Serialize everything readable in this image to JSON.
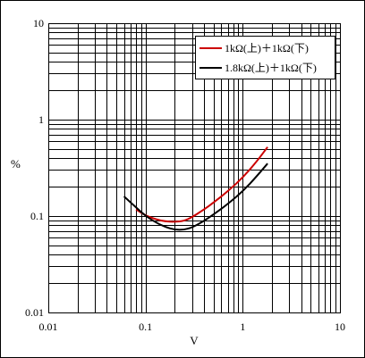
{
  "chart_data": {
    "type": "line",
    "title": "",
    "xlabel": "V",
    "ylabel": "%",
    "xscale": "log",
    "yscale": "log",
    "xlim": [
      0.01,
      10
    ],
    "ylim": [
      0.01,
      10
    ],
    "grid": true,
    "legend_position": "top-right",
    "xticks": [
      "0.01",
      "0.1",
      "1",
      "10"
    ],
    "yticks": [
      "0.01",
      "0.1",
      "1",
      "10"
    ],
    "series": [
      {
        "name": "1kΩ(上)＋1kΩ(下)",
        "color": "#cc0000",
        "x": [
          0.08,
          0.1,
          0.13,
          0.16,
          0.2,
          0.25,
          0.3,
          0.4,
          0.5,
          0.7,
          1.0,
          1.4,
          1.8
        ],
        "y": [
          0.117,
          0.101,
          0.092,
          0.088,
          0.087,
          0.089,
          0.097,
          0.117,
          0.138,
          0.18,
          0.25,
          0.37,
          0.52
        ]
      },
      {
        "name": "1.8kΩ(上)＋1kΩ(下)",
        "color": "#000000",
        "x": [
          0.06,
          0.08,
          0.1,
          0.13,
          0.16,
          0.2,
          0.25,
          0.3,
          0.4,
          0.5,
          0.7,
          1.0,
          1.4,
          1.8
        ],
        "y": [
          0.16,
          0.123,
          0.1,
          0.085,
          0.077,
          0.072,
          0.072,
          0.076,
          0.089,
          0.104,
          0.133,
          0.18,
          0.26,
          0.35
        ]
      }
    ]
  }
}
